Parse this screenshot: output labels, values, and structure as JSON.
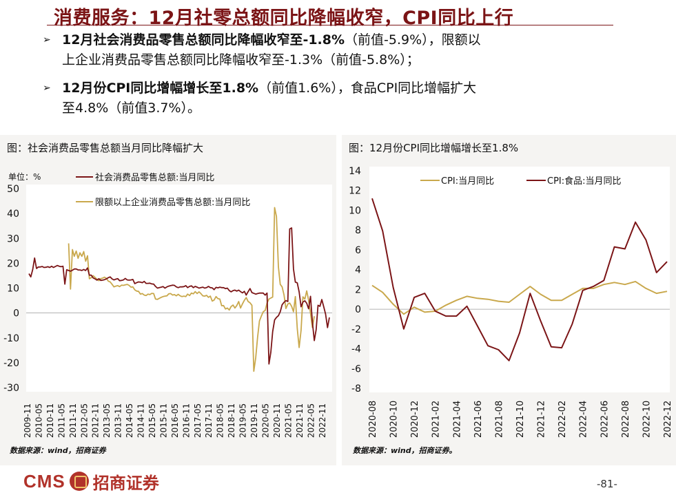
{
  "title": "消费服务：12月社零总额同比降幅收窄，CPI同比上行",
  "bullets": [
    {
      "bold": "12月社会消费品零售总额同比降幅收窄至-1.8%",
      "line1_rest": "（前值-5.9%），限额以",
      "line2": "上企业消费品零售总额同比降幅收窄至-1.3%（前值-5.8%）；"
    },
    {
      "bold": "12月份CPI同比增幅增长至1.8%",
      "line1_rest": "（前值1.6%），食品CPI同比增幅扩大",
      "line2": "至4.8%（前值3.7%）。"
    }
  ],
  "footer": {
    "logo_text": "CMS",
    "logo_cn": "招商证券",
    "page": "-81-"
  },
  "colors": {
    "dark_red": "#7b1416",
    "gold": "#c9a84c",
    "title_red": "#7b1416"
  },
  "chart_data": [
    {
      "type": "line",
      "panel_title": "图：社会消费品零售总额当月同比降幅扩大",
      "unit_label": "单位：%",
      "source": "数据来源：wind，招商证券",
      "ylim": [
        -30,
        50
      ],
      "yticks": [
        "50",
        "40",
        "30",
        "20",
        "10",
        "0",
        "-10",
        "-20",
        "-30"
      ],
      "xticks": [
        "2009-11",
        "2010-05",
        "2010-11",
        "2011-05",
        "2011-11",
        "2012-05",
        "2012-11",
        "2013-05",
        "2013-11",
        "2014-05",
        "2014-11",
        "2015-05",
        "2015-11",
        "2016-05",
        "2016-11",
        "2017-05",
        "2017-11",
        "2018-05",
        "2018-11",
        "2019-05",
        "2019-11",
        "2020-05",
        "2020-11",
        "2021-05",
        "2021-11",
        "2022-05",
        "2022-11"
      ],
      "legend": [
        "社会消费品零售总额:当月同比",
        "限额以上企业消费品零售总额:当月同比"
      ],
      "series": [
        {
          "name": "社会消费品零售总额:当月同比",
          "color": "#7b1416",
          "values": [
            15.8,
            14.5,
            17.5,
            22.1,
            17.9,
            18.5,
            18.5,
            18.7,
            18.3,
            18.4,
            18.6,
            18.3,
            18.8,
            18.3,
            18.7,
            19.1,
            18.8,
            18.6,
            18.8,
            11.6,
            17.4,
            17.1,
            16.8,
            17.2,
            17.7,
            17.7,
            17.3,
            17.3,
            17.1,
            17.5,
            17.1,
            18.1,
            15.2,
            15.2,
            14.1,
            13.7,
            13.2,
            13.8,
            13.1,
            13.2,
            13.4,
            13.7,
            14.2,
            14.5,
            13.7,
            13.3,
            13.6,
            13.8,
            13.0,
            13.1,
            13.3,
            13.9,
            13.3,
            13.2,
            13.3,
            13.5,
            11.8,
            12.2,
            12.5,
            12.4,
            12.2,
            12.7,
            11.9,
            11.9,
            12.0,
            11.7,
            11.6,
            10.7,
            10.0,
            10.2,
            10.4,
            10.6,
            10.0,
            10.5,
            10.8,
            11.0,
            11.2,
            11.1,
            10.5,
            10.2,
            10.5,
            10.5,
            10.6,
            11.0,
            10.2,
            10.7,
            10.9,
            10.2,
            10.7,
            10.4,
            10.0,
            10.2,
            10.4,
            10.0,
            10.2,
            10.7,
            10.2,
            10.1,
            9.4,
            10.3,
            10.1,
            10.4,
            10.2,
            10.2,
            9.8,
            10.0,
            9.0,
            8.5,
            9.0,
            9.2,
            8.8,
            9.2,
            8.6,
            8.1,
            8.7,
            7.2,
            8.6,
            9.8,
            8.2,
            7.9,
            7.6,
            7.8,
            8.0,
            8.0,
            8.0,
            7.2,
            8.0,
            -20.5,
            -15.8,
            -7.5,
            -2.8,
            -1.8,
            -1.1,
            0.5,
            3.3,
            4.3,
            5.0,
            4.6,
            33.8,
            34.2,
            17.7,
            12.4,
            12.1,
            8.5,
            2.5,
            4.4,
            4.9,
            3.9,
            1.7,
            6.7,
            -3.5,
            -11.1,
            -6.7,
            3.1,
            2.7,
            5.4,
            2.5,
            -0.5,
            -5.9,
            -1.8
          ]
        },
        {
          "name": "限额以上企业消费品零售总额:当月同比",
          "color": "#c9a84c",
          "values": [
            null,
            null,
            null,
            null,
            null,
            null,
            null,
            null,
            null,
            null,
            null,
            null,
            null,
            null,
            null,
            null,
            null,
            null,
            null,
            null,
            null,
            28.0,
            9.6,
            25.5,
            22.8,
            24.9,
            22.0,
            24.2,
            22.8,
            24.7,
            20.8,
            23.0,
            13.8,
            14.2,
            15.0,
            14.3,
            13.6,
            13.0,
            13.8,
            14.0,
            14.4,
            13.9,
            12.8,
            12.5,
            11.5,
            10.5,
            10.8,
            11.0,
            10.6,
            11.2,
            11.1,
            11.3,
            11.5,
            11.1,
            10.4,
            10.5,
            9.3,
            8.8,
            8.7,
            7.6,
            7.8,
            7.2,
            7.0,
            7.6,
            7.4,
            7.9,
            7.8,
            5.6,
            5.5,
            5.9,
            6.3,
            6.6,
            6.8,
            6.9,
            7.7,
            7.8,
            7.2,
            7.4,
            6.9,
            7.5,
            6.9,
            6.6,
            6.8,
            6.6,
            7.6,
            7.0,
            8.0,
            7.7,
            8.6,
            7.8,
            8.5,
            7.8,
            6.9,
            6.8,
            7.1,
            6.3,
            6.8,
            4.8,
            5.2,
            6.6,
            5.8,
            5.6,
            2.9,
            3.0,
            1.6,
            2.0,
            1.2,
            2.6,
            3.2,
            2.0,
            3.0,
            4.6,
            2.0,
            3.7,
            5.1,
            6.2,
            4.6,
            4.1,
            3.1,
            -23.4,
            -18.0,
            -9.8,
            -3.2,
            -1.2,
            0.5,
            1.0,
            4.0,
            5.6,
            6.0,
            6.4,
            42.4,
            38.8,
            18.6,
            11.5,
            10.5,
            7.2,
            1.8,
            3.6,
            4.0,
            2.7,
            0.5,
            6.6,
            -6.3,
            -13.9,
            -7.0,
            6.5,
            5.6,
            8.9,
            5.2,
            -0.1,
            -5.8,
            -1.3
          ]
        }
      ]
    },
    {
      "type": "line",
      "panel_title": "图：12月份CPI同比增幅增长至1.8%",
      "source": "数据来源：wind，招商证券。",
      "ylim": [
        -8,
        14
      ],
      "yticks": [
        "14",
        "12",
        "10",
        "8",
        "6",
        "4",
        "2",
        "0",
        "-2",
        "-4",
        "-6",
        "-8"
      ],
      "xticks": [
        "2020-08",
        "2020-10",
        "2020-12",
        "2021-02",
        "2021-04",
        "2021-06",
        "2021-08",
        "2021-10",
        "2021-12",
        "2022-02",
        "2022-04",
        "2022-06",
        "2022-08",
        "2022-10",
        "2022-12"
      ],
      "x": [
        "2020-08",
        "2020-09",
        "2020-10",
        "2020-11",
        "2020-12",
        "2021-01",
        "2021-02",
        "2021-03",
        "2021-04",
        "2021-05",
        "2021-06",
        "2021-07",
        "2021-08",
        "2021-09",
        "2021-10",
        "2021-11",
        "2021-12",
        "2022-01",
        "2022-02",
        "2022-03",
        "2022-04",
        "2022-05",
        "2022-06",
        "2022-07",
        "2022-08",
        "2022-09",
        "2022-10",
        "2022-11",
        "2022-12"
      ],
      "legend": [
        "CPI:当月同比",
        "CPI:食品:当月同比"
      ],
      "series": [
        {
          "name": "CPI:当月同比",
          "color": "#c9a84c",
          "values": [
            2.4,
            1.7,
            0.5,
            -0.5,
            0.2,
            -0.3,
            -0.2,
            0.4,
            0.9,
            1.3,
            1.1,
            1.0,
            0.8,
            0.7,
            1.5,
            2.3,
            1.5,
            0.9,
            0.9,
            1.5,
            2.1,
            2.1,
            2.5,
            2.7,
            2.5,
            2.8,
            2.1,
            1.6,
            1.8
          ]
        },
        {
          "name": "CPI:食品:当月同比",
          "color": "#7b1416",
          "values": [
            11.2,
            7.9,
            2.2,
            -2.0,
            1.2,
            1.6,
            -0.2,
            -0.7,
            -0.7,
            0.3,
            -1.7,
            -3.7,
            -4.1,
            -5.2,
            -2.4,
            1.6,
            -1.2,
            -3.8,
            -3.9,
            -1.5,
            1.9,
            2.3,
            2.9,
            6.3,
            6.1,
            8.8,
            7.0,
            3.7,
            4.8
          ]
        }
      ]
    }
  ]
}
